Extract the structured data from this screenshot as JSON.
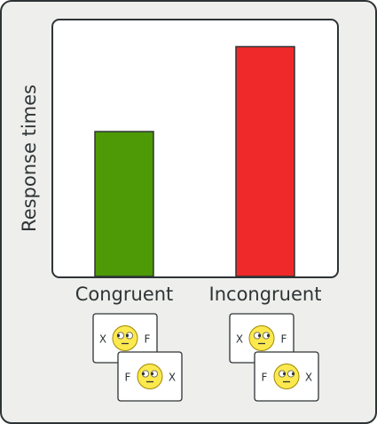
{
  "chart_data": {
    "type": "bar",
    "categories": [
      "Congruent",
      "Incongruent"
    ],
    "values": [
      0.58,
      0.92
    ],
    "ylabel": "Response times",
    "xlabel": "",
    "ylim": [
      0,
      1
    ],
    "grid": false,
    "legend": "none",
    "colors": [
      "#4e9a06",
      "#ef2929"
    ]
  },
  "stimuli": [
    {
      "category": "Congruent",
      "cards": [
        {
          "left": "X",
          "right": "F",
          "face_gaze": "left"
        },
        {
          "left": "F",
          "right": "X",
          "face_gaze": "left"
        }
      ]
    },
    {
      "category": "Incongruent",
      "cards": [
        {
          "left": "X",
          "right": "F",
          "face_gaze": "right"
        },
        {
          "left": "F",
          "right": "X",
          "face_gaze": "right"
        }
      ]
    }
  ],
  "colors": {
    "panel_bg": "#eeeeec",
    "panel_border": "#2e3436",
    "plot_bg": "#ffffff",
    "face": "#fce94f",
    "face_outline": "#a08a00"
  }
}
